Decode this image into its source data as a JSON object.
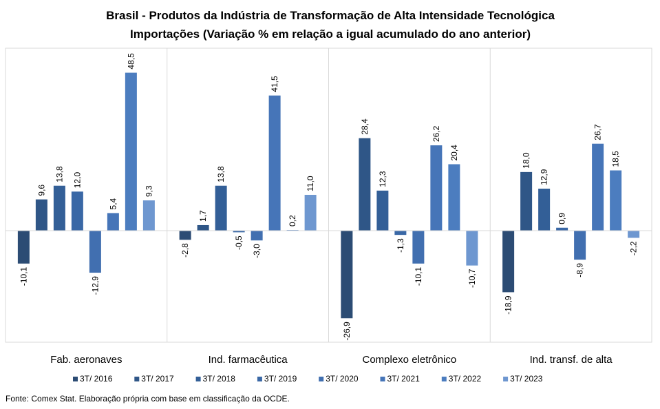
{
  "chart_data": {
    "type": "bar",
    "title": "Brasil - Produtos da Indústria de Transformação  de Alta Intensidade Tecnológica",
    "subtitle": "Importações (Variação % em relação a igual acumulado do ano anterior)",
    "categories": [
      "Fab. aeronaves",
      "Ind. farmacêutica",
      "Complexo eletrônico",
      "Ind. transf. de alta"
    ],
    "series": [
      {
        "name": "3T/ 2016",
        "values": [
          -10.1,
          -2.8,
          -26.9,
          -18.9
        ],
        "labels": [
          "-10,1",
          "-2,8",
          "-26,9",
          "-18,9"
        ]
      },
      {
        "name": "3T/ 2017",
        "values": [
          9.6,
          1.7,
          28.4,
          18.0
        ],
        "labels": [
          "9,6",
          "1,7",
          "28,4",
          "18,0"
        ]
      },
      {
        "name": "3T/ 2018",
        "values": [
          13.8,
          13.8,
          12.3,
          12.9
        ],
        "labels": [
          "13,8",
          "13,8",
          "12,3",
          "12,9"
        ]
      },
      {
        "name": "3T/ 2019",
        "values": [
          12.0,
          -0.5,
          -1.3,
          0.9
        ],
        "labels": [
          "12,0",
          "-0,5",
          "-1,3",
          "0,9"
        ]
      },
      {
        "name": "3T/ 2020",
        "values": [
          -12.9,
          -3.0,
          -10.1,
          -8.9
        ],
        "labels": [
          "-12,9",
          "-3,0",
          "-10,1",
          "-8,9"
        ]
      },
      {
        "name": "3T/ 2021",
        "values": [
          5.4,
          41.5,
          26.2,
          26.7
        ],
        "labels": [
          "5,4",
          "41,5",
          "26,2",
          "26,7"
        ]
      },
      {
        "name": "3T/ 2022",
        "values": [
          48.5,
          0.2,
          20.4,
          18.5
        ],
        "labels": [
          "48,5",
          "0,2",
          "20,4",
          "18,5"
        ]
      },
      {
        "name": "3T/ 2023",
        "values": [
          9.3,
          11.0,
          -10.7,
          -2.2
        ],
        "labels": [
          "9,3",
          "11,0",
          "-10,7",
          "-2,2"
        ]
      }
    ],
    "colors": [
      "#2c4c74",
      "#2f5687",
      "#335f97",
      "#3a68a6",
      "#416fb0",
      "#4675b8",
      "#4c7dbf",
      "#6e97d0"
    ],
    "legend_position": "bottom",
    "grid": false,
    "source": "Fonte: Comex Stat. Elaboração própria com base em classificação da OCDE."
  }
}
